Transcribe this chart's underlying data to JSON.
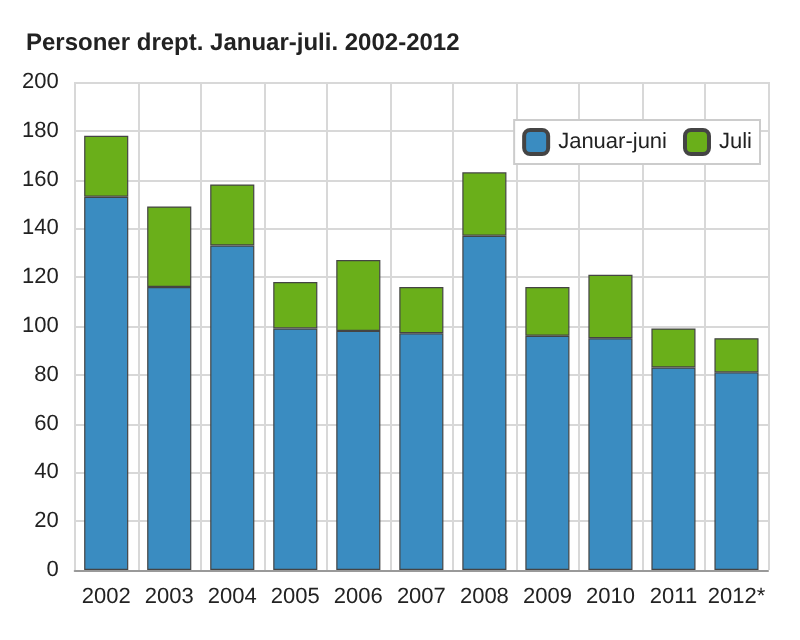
{
  "chart_data": {
    "type": "bar",
    "title": "Personer drept. Januar-juli. 2002-2012",
    "categories": [
      "2002",
      "2003",
      "2004",
      "2005",
      "2006",
      "2007",
      "2008",
      "2009",
      "2010",
      "2011",
      "2012*"
    ],
    "stacked": true,
    "series": [
      {
        "name": "Januar-juni",
        "color": "#3a8cc1",
        "values": [
          153,
          116,
          133,
          99,
          98,
          97,
          137,
          96,
          95,
          83,
          81
        ]
      },
      {
        "name": "Juli",
        "color": "#6aaf1a",
        "values": [
          25,
          33,
          25,
          19,
          29,
          19,
          26,
          20,
          26,
          16,
          14
        ]
      }
    ],
    "ylim": [
      0,
      200
    ],
    "yticks": [
      0,
      20,
      40,
      60,
      80,
      100,
      120,
      140,
      160,
      180,
      200
    ],
    "grid": true,
    "legend": "top right"
  }
}
